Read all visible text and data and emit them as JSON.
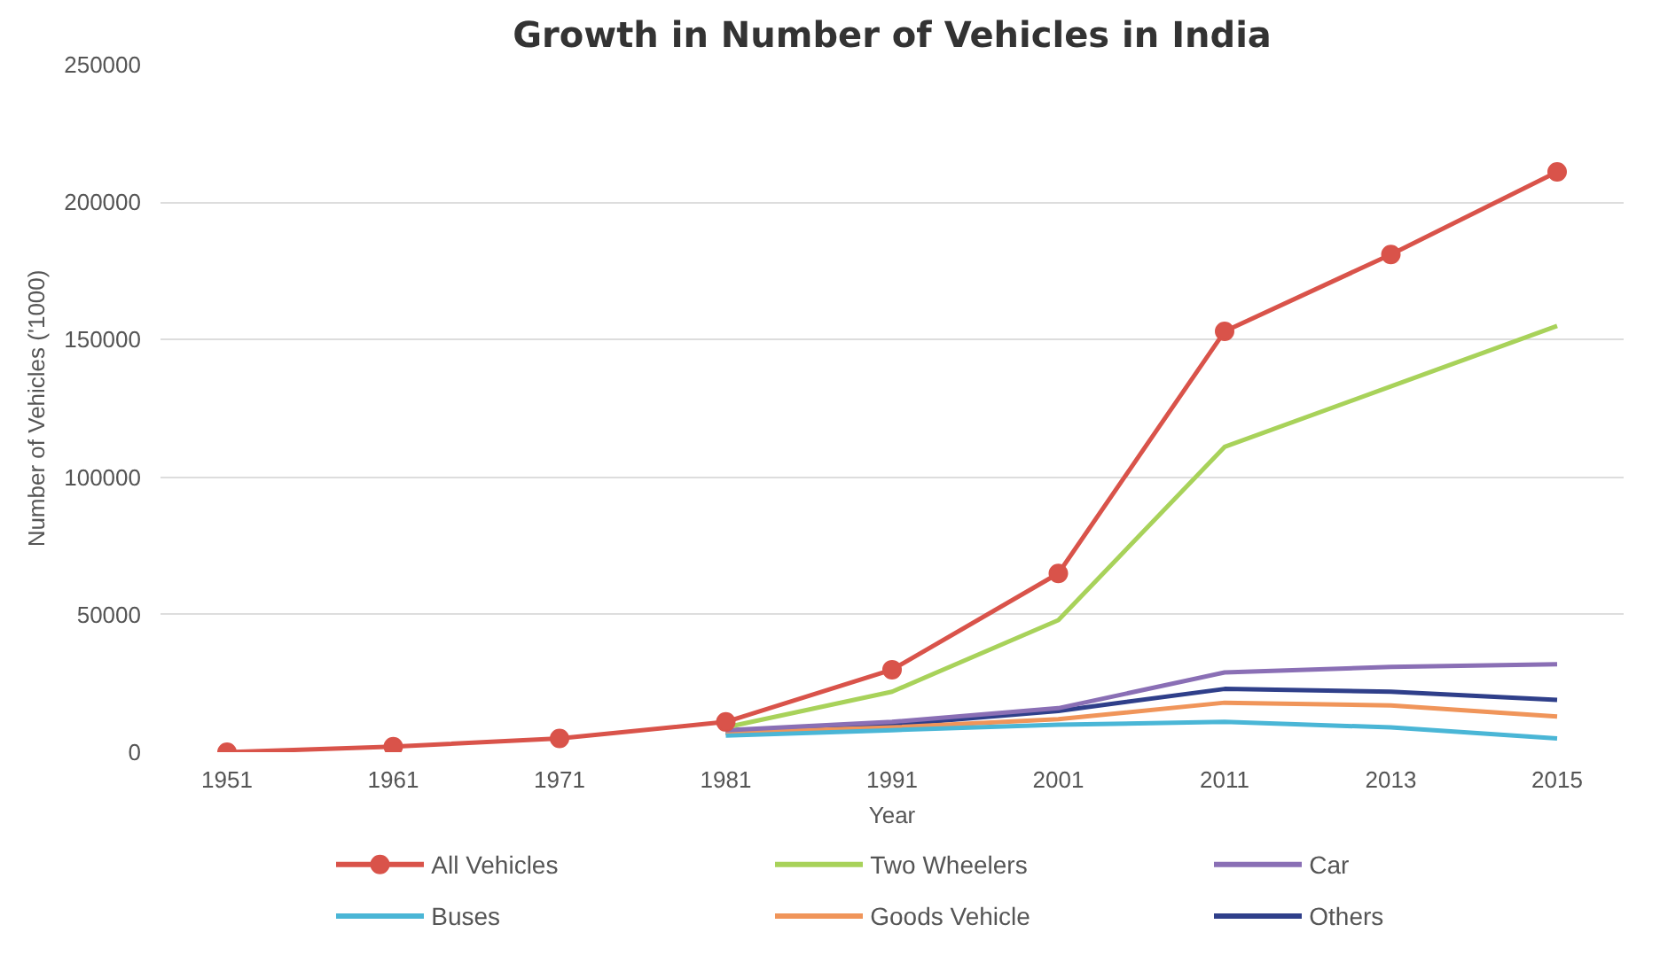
{
  "chart_data": {
    "type": "line",
    "title": "Growth in Number of Vehicles in India",
    "xlabel": "Year",
    "ylabel": "Number of Vehicles ('1000)",
    "categories": [
      "1951",
      "1961",
      "1971",
      "1981",
      "1991",
      "2001",
      "2011",
      "2013",
      "2015"
    ],
    "ylim": [
      0,
      250000
    ],
    "yticks": [
      0,
      50000,
      100000,
      150000,
      200000,
      250000
    ],
    "grid": "y",
    "legend": "bottom",
    "series": [
      {
        "name": "All Vehicles",
        "color": "#d9534a",
        "marker": "circle",
        "values": [
          0,
          2000,
          5000,
          11000,
          30000,
          65000,
          153000,
          181000,
          211000
        ]
      },
      {
        "name": "Two Wheelers",
        "color": "#a8d25a",
        "values": [
          null,
          null,
          null,
          9000,
          22000,
          48000,
          111000,
          133000,
          155000
        ]
      },
      {
        "name": "Car",
        "color": "#8a6fb5",
        "values": [
          null,
          null,
          null,
          8000,
          11000,
          16000,
          29000,
          31000,
          32000
        ]
      },
      {
        "name": "Buses",
        "color": "#4ab6d6",
        "values": [
          null,
          null,
          null,
          6000,
          8000,
          10000,
          11000,
          9000,
          5000
        ]
      },
      {
        "name": "Goods Vehicle",
        "color": "#f0955a",
        "values": [
          null,
          null,
          null,
          7000,
          9000,
          12000,
          18000,
          17000,
          13000
        ]
      },
      {
        "name": "Others",
        "color": "#2f3f8a",
        "values": [
          null,
          null,
          null,
          7000,
          10000,
          15000,
          23000,
          22000,
          19000
        ]
      }
    ]
  }
}
